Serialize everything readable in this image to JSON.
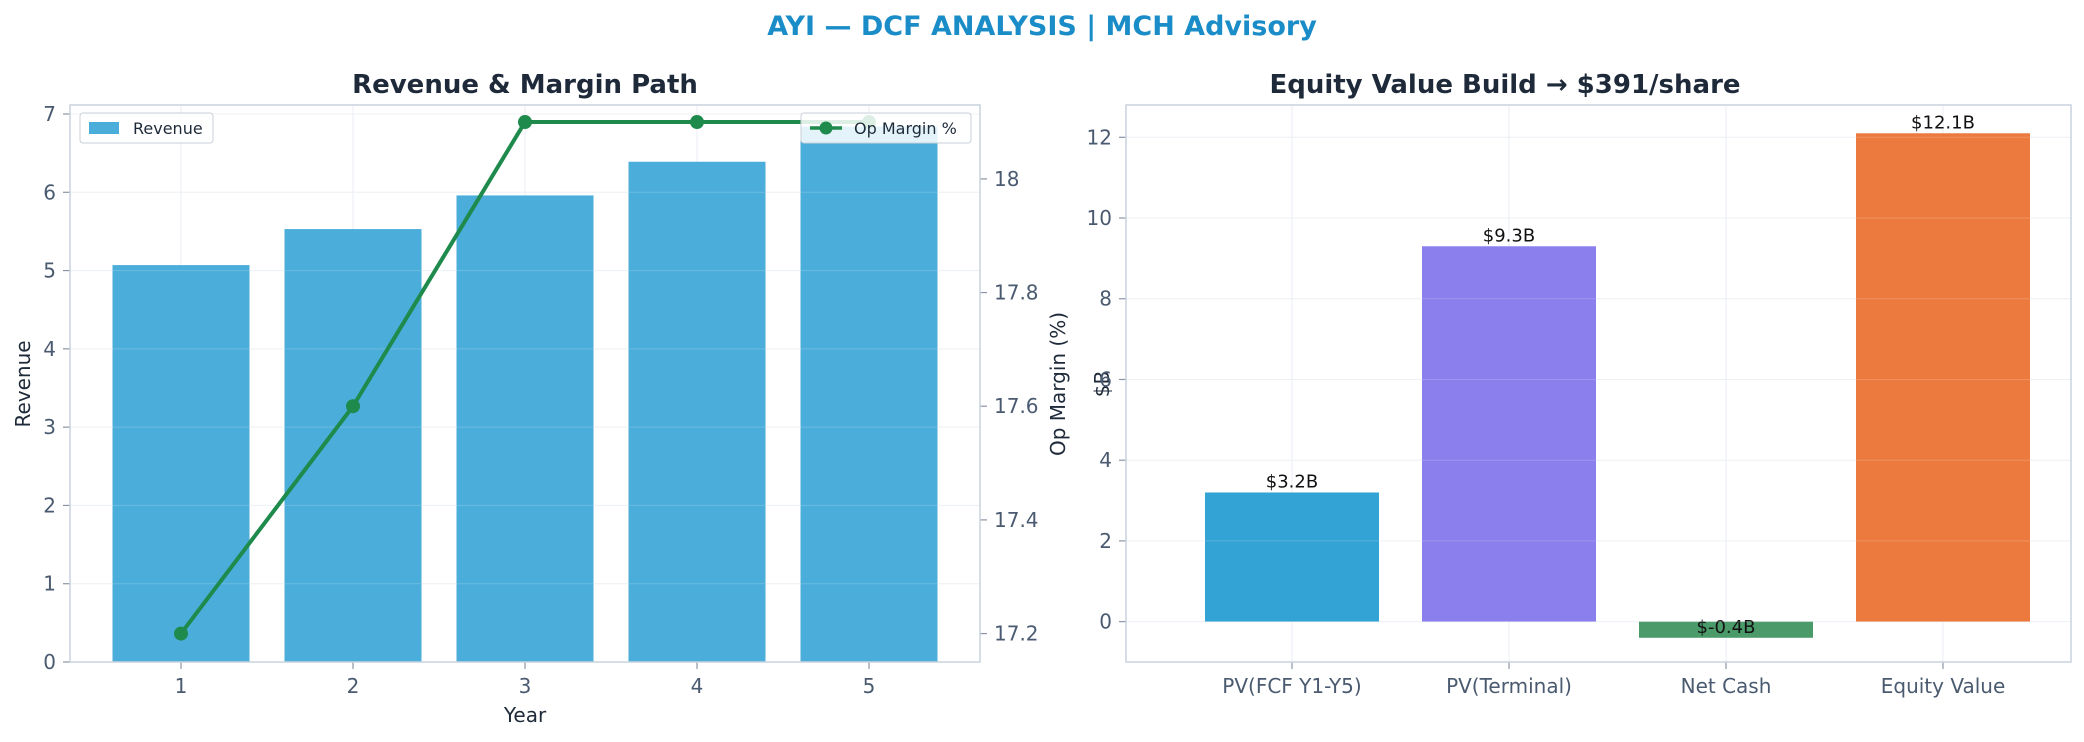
{
  "figure": {
    "suptitle": "AYI — DCF ANALYSIS | MCH Advisory",
    "suptitle_color": "#1a8cc7"
  },
  "chart_data": [
    {
      "type": "bar",
      "title": "Revenue & Margin Path",
      "xlabel": "Year",
      "ylabel": "Revenue",
      "y2label": "Op Margin (%)",
      "categories": [
        "1",
        "2",
        "3",
        "4",
        "5"
      ],
      "ylim": [
        0,
        7
      ],
      "yticks": [
        0,
        1,
        2,
        3,
        4,
        5,
        6,
        7
      ],
      "y2lim": [
        17.15,
        18.13
      ],
      "y2ticks": [
        17.2,
        17.4,
        17.6,
        17.8,
        18.0
      ],
      "series": [
        {
          "name": "Revenue",
          "type": "bar",
          "axis": "left",
          "color": "#4badda",
          "values": [
            5.07,
            5.53,
            5.96,
            6.39,
            6.84
          ]
        },
        {
          "name": "Op Margin %",
          "type": "line",
          "axis": "right",
          "color": "#1e8a4c",
          "values": [
            17.2,
            17.6,
            18.1,
            18.1,
            18.1
          ]
        }
      ],
      "legend": {
        "bar_placement": "top-left",
        "line_placement": "top-right"
      },
      "grid": true
    },
    {
      "type": "bar",
      "title": "Equity Value Build → $391/share",
      "xlabel": "",
      "ylabel": "$B",
      "categories": [
        "PV(FCF Y1-Y5)",
        "PV(Terminal)",
        "Net Cash",
        "Equity Value"
      ],
      "values": [
        3.2,
        9.3,
        -0.4,
        12.1
      ],
      "data_labels": [
        "$3.2B",
        "$9.3B",
        "$-0.4B",
        "$12.1B"
      ],
      "colors": [
        "#33a2d4",
        "#8a7fec",
        "#4a9a6a",
        "#ec7a3e"
      ],
      "ylim": [
        -1,
        12.8
      ],
      "yticks": [
        0,
        2,
        4,
        6,
        8,
        10,
        12
      ],
      "grid": true
    }
  ]
}
